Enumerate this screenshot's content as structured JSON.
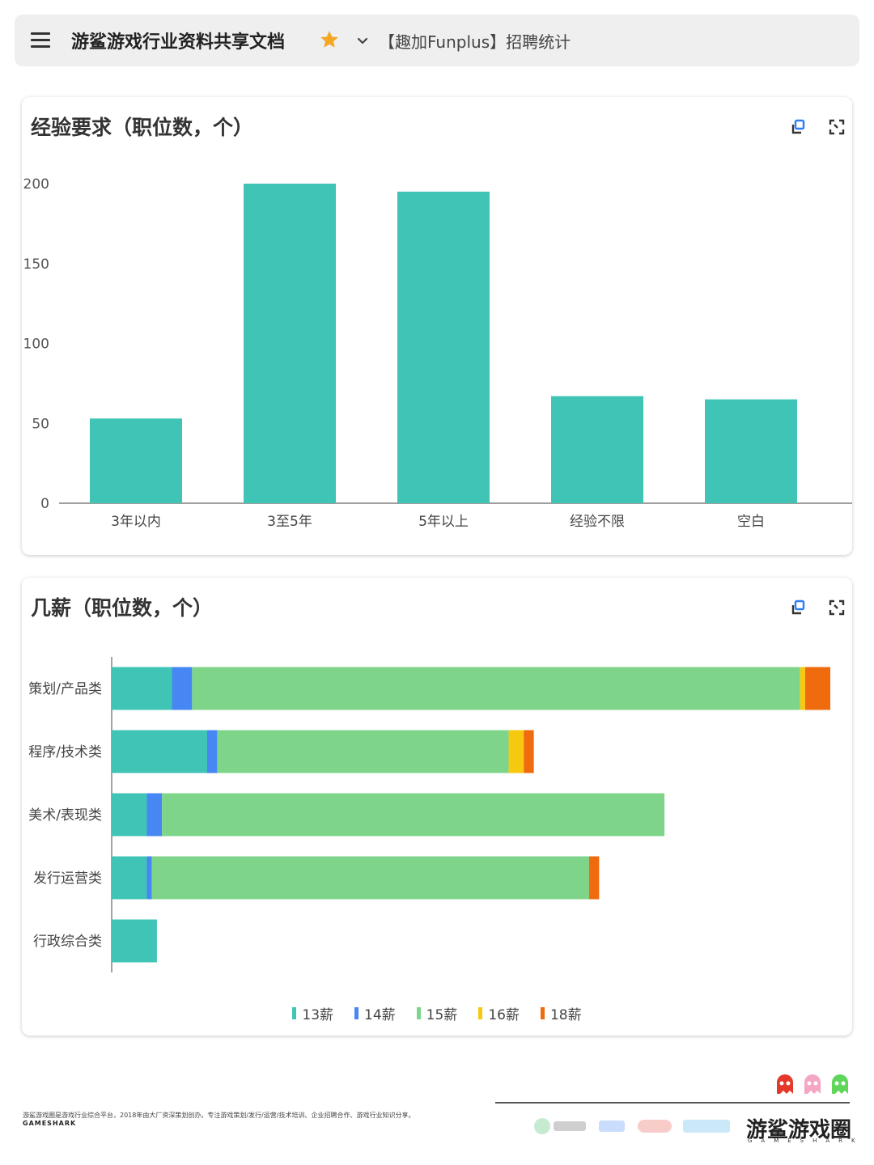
{
  "header": {
    "doc_title": "游鲨游戏行业资料共享文档",
    "sheet_name": "【趣加Funplus】招聘统计"
  },
  "icons": [
    "menu-icon",
    "star-icon",
    "chevron-down-icon",
    "copy-icon",
    "expand-icon"
  ],
  "colors": {
    "teal": "#40c4b6",
    "blue": "#4687f4",
    "green": "#7ed58a",
    "yellow": "#f7c90e",
    "orange": "#f06a0e",
    "star": "#f5a623"
  },
  "chart_data": [
    {
      "type": "bar",
      "title": "经验要求（职位数，个）",
      "categories": [
        "3年以内",
        "3至5年",
        "5年以上",
        "经验不限",
        "空白"
      ],
      "values": [
        53,
        200,
        195,
        67,
        65
      ],
      "ylim": [
        0,
        200
      ],
      "yticks": [
        "0",
        "50",
        "100",
        "150",
        "200"
      ],
      "xlabel": "",
      "ylabel": ""
    },
    {
      "type": "bar",
      "orientation": "horizontal",
      "stacked": true,
      "title": "几薪（职位数，个）",
      "categories": [
        "策划/产品类",
        "程序/技术类",
        "美术/表现类",
        "发行运营类",
        "行政综合类"
      ],
      "series": [
        {
          "name": "13薪",
          "color": "#40c4b6",
          "values": [
            12,
            19,
            7,
            7,
            9
          ]
        },
        {
          "name": "14薪",
          "color": "#4687f4",
          "values": [
            4,
            2,
            3,
            1,
            0
          ]
        },
        {
          "name": "15薪",
          "color": "#7ed58a",
          "values": [
            121,
            58,
            100,
            87,
            0
          ]
        },
        {
          "name": "16薪",
          "color": "#f7c90e",
          "values": [
            1,
            3,
            0,
            0,
            0
          ]
        },
        {
          "name": "18薪",
          "color": "#f06a0e",
          "values": [
            5,
            2,
            0,
            2,
            0
          ]
        }
      ],
      "legend_position": "bottom"
    }
  ],
  "footer": {
    "description": "游鲨游戏圈是游戏行业综合平台，2018年由大厂资深策划创办。专注游戏策划/发行/运营/技术培训、企业招聘合作、游戏行业知识分享。",
    "sub": "GAMESHARK",
    "brand": "游鲨游戏圈",
    "brand_sub": "GAMESHARK"
  }
}
